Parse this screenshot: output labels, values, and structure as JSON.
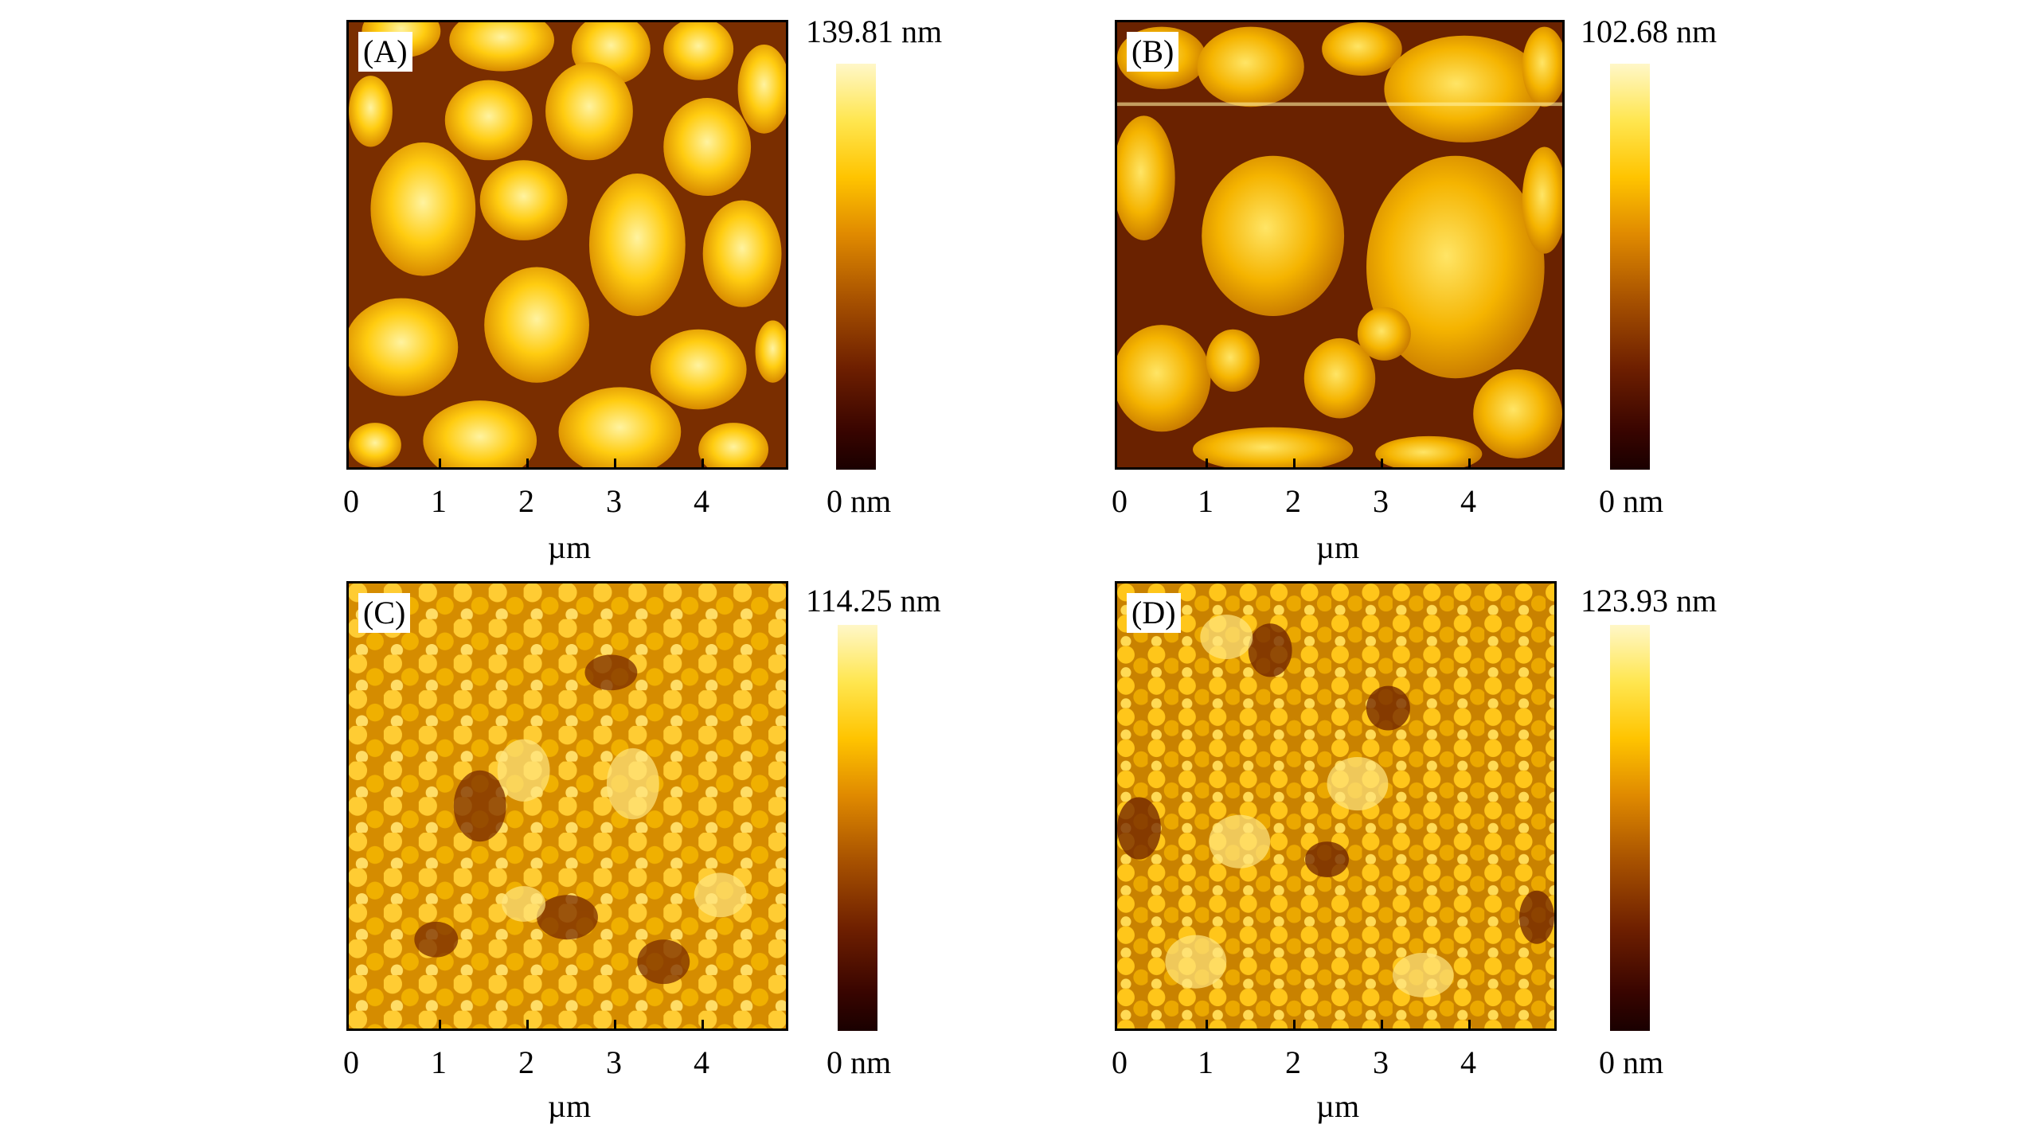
{
  "panels": [
    {
      "label": "(A)",
      "max": "139.81 nm",
      "min": "0 nm",
      "unit": "µm",
      "ticks": [
        "0",
        "1",
        "2",
        "3",
        "4"
      ]
    },
    {
      "label": "(B)",
      "max": "102.68 nm",
      "min": "0 nm",
      "unit": "µm",
      "ticks": [
        "0",
        "1",
        "2",
        "3",
        "4"
      ]
    },
    {
      "label": "(C)",
      "max": "114.25 nm",
      "min": "0 nm",
      "unit": "µm",
      "ticks": [
        "0",
        "1",
        "2",
        "3",
        "4"
      ]
    },
    {
      "label": "(D)",
      "max": "123.93 nm",
      "min": "0 nm",
      "unit": "µm",
      "ticks": [
        "0",
        "1",
        "2",
        "3",
        "4"
      ]
    }
  ],
  "colors": {
    "colormap": [
      "#1a0000",
      "#6e1f00",
      "#e08a00",
      "#ffc400",
      "#fff7c8"
    ]
  }
}
